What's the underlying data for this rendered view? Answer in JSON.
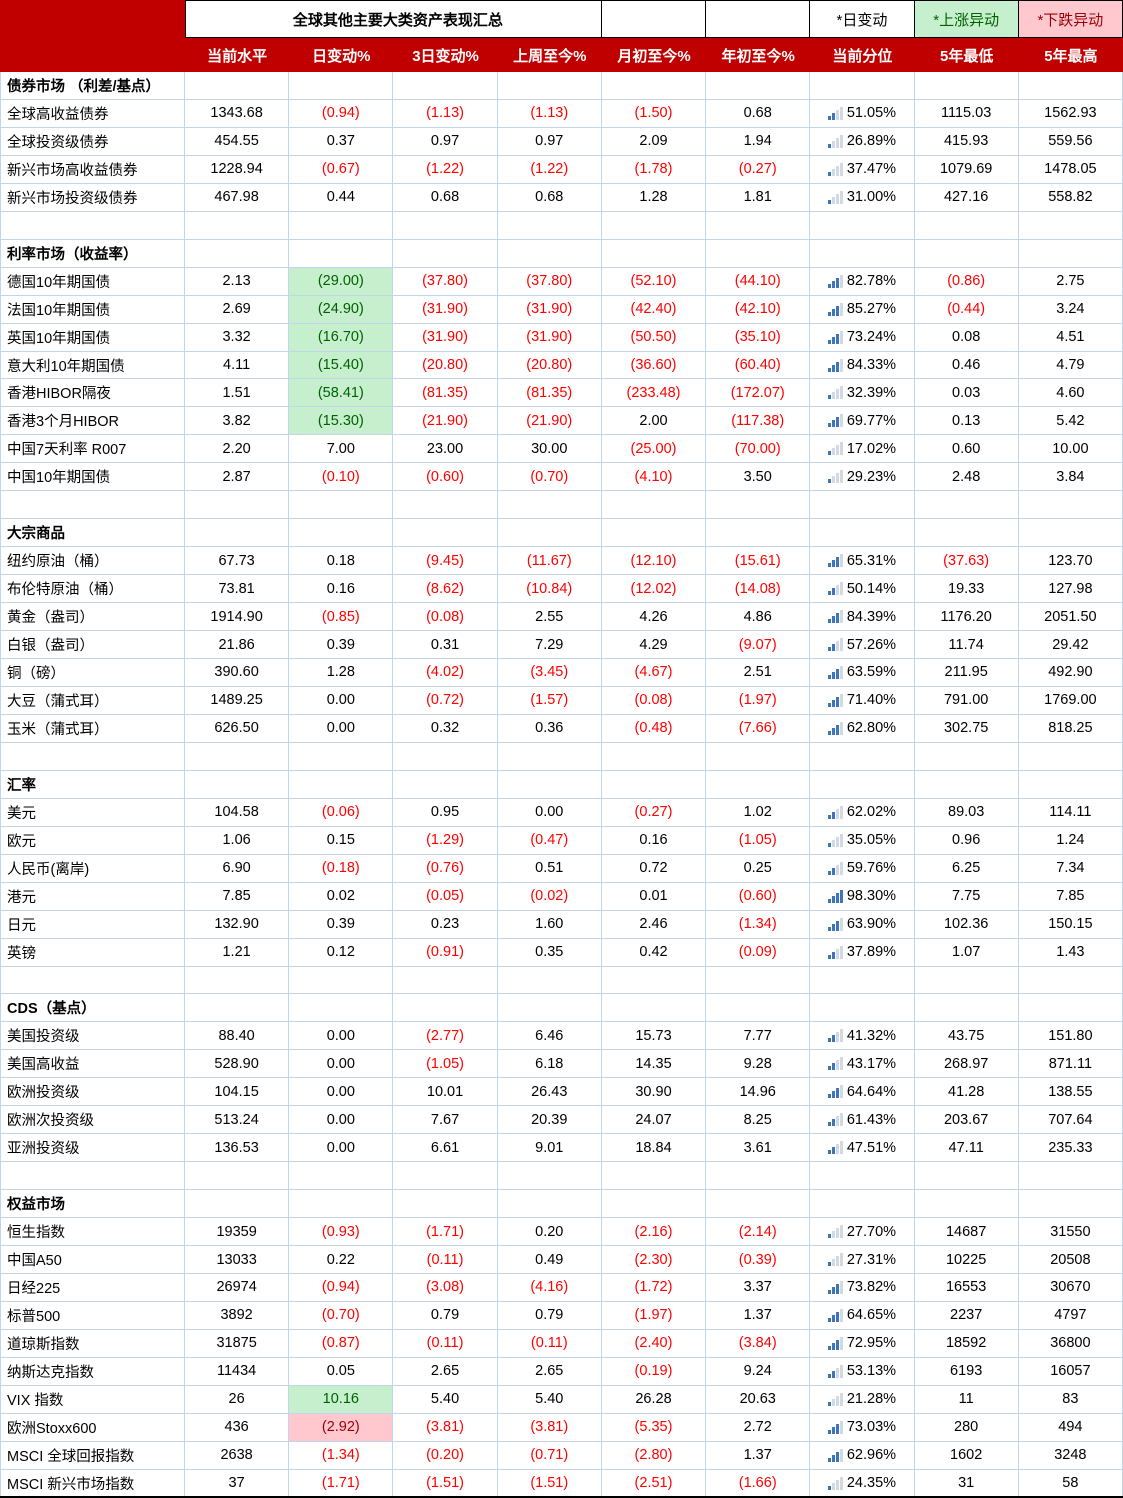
{
  "title": "全球其他主要大类资产表现汇总",
  "legend": {
    "day": "*日变动",
    "up": "*上涨异动",
    "down": "*下跌异动"
  },
  "colors": {
    "header_bg": "#C00000",
    "grid": "#C3D4EB",
    "negative": "#FF0000",
    "up_bg": "#C6EFCE",
    "up_text": "#006100",
    "down_bg": "#FFC7CE",
    "down_text": "#9C0006",
    "icon_filled": "#3E74BA",
    "icon_empty": "#D2D9E2"
  },
  "chart_data": {
    "type": "table",
    "columns": [
      "当前水平",
      "日变动%",
      "3日变动%",
      "上周至今%",
      "月初至今%",
      "年初至今%",
      "当前分位",
      "5年最低",
      "5年最高"
    ],
    "sections": [
      {
        "name": "债券市场 （利差/基点）",
        "rows": [
          {
            "label": "全球高收益债券",
            "cells": [
              "1343.68",
              "(0.94)",
              "(1.13)",
              "(1.13)",
              "(1.50)",
              "0.68",
              "51.05%",
              "1115.03",
              "1562.93"
            ]
          },
          {
            "label": "全球投资级债券",
            "cells": [
              "454.55",
              "0.37",
              "0.97",
              "0.97",
              "2.09",
              "1.94",
              "26.89%",
              "415.93",
              "559.56"
            ]
          },
          {
            "label": "新兴市场高收益债券",
            "cells": [
              "1228.94",
              "(0.67)",
              "(1.22)",
              "(1.22)",
              "(1.78)",
              "(0.27)",
              "37.47%",
              "1079.69",
              "1478.05"
            ]
          },
          {
            "label": "新兴市场投资级债券",
            "cells": [
              "467.98",
              "0.44",
              "0.68",
              "0.68",
              "1.28",
              "1.81",
              "31.00%",
              "427.16",
              "558.82"
            ]
          }
        ]
      },
      {
        "name": "利率市场（收益率）",
        "rows": [
          {
            "label": "德国10年期国债",
            "cells": [
              "2.13",
              "(29.00)",
              "(37.80)",
              "(37.80)",
              "(52.10)",
              "(44.10)",
              "82.78%",
              "(0.86)",
              "2.75"
            ],
            "day_flag": "up"
          },
          {
            "label": "法国10年期国债",
            "cells": [
              "2.69",
              "(24.90)",
              "(31.90)",
              "(31.90)",
              "(42.40)",
              "(42.10)",
              "85.27%",
              "(0.44)",
              "3.24"
            ],
            "day_flag": "up"
          },
          {
            "label": "英国10年期国债",
            "cells": [
              "3.32",
              "(16.70)",
              "(31.90)",
              "(31.90)",
              "(50.50)",
              "(35.10)",
              "73.24%",
              "0.08",
              "4.51"
            ],
            "day_flag": "up"
          },
          {
            "label": "意大利10年期国债",
            "cells": [
              "4.11",
              "(15.40)",
              "(20.80)",
              "(20.80)",
              "(36.60)",
              "(60.40)",
              "84.33%",
              "0.46",
              "4.79"
            ],
            "day_flag": "up"
          },
          {
            "label": "香港HIBOR隔夜",
            "cells": [
              "1.51",
              "(58.41)",
              "(81.35)",
              "(81.35)",
              "(233.48)",
              "(172.07)",
              "32.39%",
              "0.03",
              "4.60"
            ],
            "day_flag": "up"
          },
          {
            "label": "香港3个月HIBOR",
            "cells": [
              "3.82",
              "(15.30)",
              "(21.90)",
              "(21.90)",
              "2.00",
              "(117.38)",
              "69.77%",
              "0.13",
              "5.42"
            ],
            "day_flag": "up"
          },
          {
            "label": "中国7天利率 R007",
            "cells": [
              "2.20",
              "7.00",
              "23.00",
              "30.00",
              "(25.00)",
              "(70.00)",
              "17.02%",
              "0.60",
              "10.00"
            ]
          },
          {
            "label": "中国10年期国债",
            "cells": [
              "2.87",
              "(0.10)",
              "(0.60)",
              "(0.70)",
              "(4.10)",
              "3.50",
              "29.23%",
              "2.48",
              "3.84"
            ]
          }
        ]
      },
      {
        "name": "大宗商品",
        "rows": [
          {
            "label": "纽约原油（桶）",
            "cells": [
              "67.73",
              "0.18",
              "(9.45)",
              "(11.67)",
              "(12.10)",
              "(15.61)",
              "65.31%",
              "(37.63)",
              "123.70"
            ]
          },
          {
            "label": "布伦特原油（桶）",
            "cells": [
              "73.81",
              "0.16",
              "(8.62)",
              "(10.84)",
              "(12.02)",
              "(14.08)",
              "50.14%",
              "19.33",
              "127.98"
            ]
          },
          {
            "label": "黄金（盎司）",
            "cells": [
              "1914.90",
              "(0.85)",
              "(0.08)",
              "2.55",
              "4.26",
              "4.86",
              "84.39%",
              "1176.20",
              "2051.50"
            ]
          },
          {
            "label": "白银（盎司）",
            "cells": [
              "21.86",
              "0.39",
              "0.31",
              "7.29",
              "4.29",
              "(9.07)",
              "57.26%",
              "11.74",
              "29.42"
            ]
          },
          {
            "label": "铜（磅）",
            "cells": [
              "390.60",
              "1.28",
              "(4.02)",
              "(3.45)",
              "(4.67)",
              "2.51",
              "63.59%",
              "211.95",
              "492.90"
            ]
          },
          {
            "label": "大豆（蒲式耳）",
            "cells": [
              "1489.25",
              "0.00",
              "(0.72)",
              "(1.57)",
              "(0.08)",
              "(1.97)",
              "71.40%",
              "791.00",
              "1769.00"
            ]
          },
          {
            "label": "玉米（蒲式耳）",
            "cells": [
              "626.50",
              "0.00",
              "0.32",
              "0.36",
              "(0.48)",
              "(7.66)",
              "62.80%",
              "302.75",
              "818.25"
            ]
          }
        ]
      },
      {
        "name": "汇率",
        "rows": [
          {
            "label": "美元",
            "cells": [
              "104.58",
              "(0.06)",
              "0.95",
              "0.00",
              "(0.27)",
              "1.02",
              "62.02%",
              "89.03",
              "114.11"
            ]
          },
          {
            "label": "欧元",
            "cells": [
              "1.06",
              "0.15",
              "(1.29)",
              "(0.47)",
              "0.16",
              "(1.05)",
              "35.05%",
              "0.96",
              "1.24"
            ]
          },
          {
            "label": "人民币(离岸)",
            "cells": [
              "6.90",
              "(0.18)",
              "(0.76)",
              "0.51",
              "0.72",
              "0.25",
              "59.76%",
              "6.25",
              "7.34"
            ]
          },
          {
            "label": "港元",
            "cells": [
              "7.85",
              "0.02",
              "(0.05)",
              "(0.02)",
              "0.01",
              "(0.60)",
              "98.30%",
              "7.75",
              "7.85"
            ]
          },
          {
            "label": "日元",
            "cells": [
              "132.90",
              "0.39",
              "0.23",
              "1.60",
              "2.46",
              "(1.34)",
              "63.90%",
              "102.36",
              "150.15"
            ]
          },
          {
            "label": "英镑",
            "cells": [
              "1.21",
              "0.12",
              "(0.91)",
              "0.35",
              "0.42",
              "(0.09)",
              "37.89%",
              "1.07",
              "1.43"
            ]
          }
        ]
      },
      {
        "name": "CDS（基点）",
        "rows": [
          {
            "label": "美国投资级",
            "cells": [
              "88.40",
              "0.00",
              "(2.77)",
              "6.46",
              "15.73",
              "7.77",
              "41.32%",
              "43.75",
              "151.80"
            ]
          },
          {
            "label": "美国高收益",
            "cells": [
              "528.90",
              "0.00",
              "(1.05)",
              "6.18",
              "14.35",
              "9.28",
              "43.17%",
              "268.97",
              "871.11"
            ]
          },
          {
            "label": "欧洲投资级",
            "cells": [
              "104.15",
              "0.00",
              "10.01",
              "26.43",
              "30.90",
              "14.96",
              "64.64%",
              "41.28",
              "138.55"
            ]
          },
          {
            "label": "欧洲次投资级",
            "cells": [
              "513.24",
              "0.00",
              "7.67",
              "20.39",
              "24.07",
              "8.25",
              "61.43%",
              "203.67",
              "707.64"
            ]
          },
          {
            "label": "亚洲投资级",
            "cells": [
              "136.53",
              "0.00",
              "6.61",
              "9.01",
              "18.84",
              "3.61",
              "47.51%",
              "47.11",
              "235.33"
            ]
          }
        ]
      },
      {
        "name": "权益市场",
        "rows": [
          {
            "label": "恒生指数",
            "cells": [
              "19359",
              "(0.93)",
              "(1.71)",
              "0.20",
              "(2.16)",
              "(2.14)",
              "27.70%",
              "14687",
              "31550"
            ]
          },
          {
            "label": "中国A50",
            "cells": [
              "13033",
              "0.22",
              "(0.11)",
              "0.49",
              "(2.30)",
              "(0.39)",
              "27.31%",
              "10225",
              "20508"
            ]
          },
          {
            "label": "日经225",
            "cells": [
              "26974",
              "(0.94)",
              "(3.08)",
              "(4.16)",
              "(1.72)",
              "3.37",
              "73.82%",
              "16553",
              "30670"
            ]
          },
          {
            "label": "标普500",
            "cells": [
              "3892",
              "(0.70)",
              "0.79",
              "0.79",
              "(1.97)",
              "1.37",
              "64.65%",
              "2237",
              "4797"
            ]
          },
          {
            "label": "道琼斯指数",
            "cells": [
              "31875",
              "(0.87)",
              "(0.11)",
              "(0.11)",
              "(2.40)",
              "(3.84)",
              "72.95%",
              "18592",
              "36800"
            ]
          },
          {
            "label": "纳斯达克指数",
            "cells": [
              "11434",
              "0.05",
              "2.65",
              "2.65",
              "(0.19)",
              "9.24",
              "53.13%",
              "6193",
              "16057"
            ]
          },
          {
            "label": "VIX 指数",
            "cells": [
              "26",
              "10.16",
              "5.40",
              "5.40",
              "26.28",
              "20.63",
              "21.28%",
              "11",
              "83"
            ],
            "day_flag": "up"
          },
          {
            "label": "欧洲Stoxx600",
            "cells": [
              "436",
              "(2.92)",
              "(3.81)",
              "(3.81)",
              "(5.35)",
              "2.72",
              "73.03%",
              "280",
              "494"
            ],
            "day_flag": "down"
          },
          {
            "label": "MSCI 全球回报指数",
            "cells": [
              "2638",
              "(1.34)",
              "(0.20)",
              "(0.71)",
              "(2.80)",
              "1.37",
              "62.96%",
              "1602",
              "3248"
            ]
          },
          {
            "label": "MSCI 新兴市场指数",
            "cells": [
              "37",
              "(1.71)",
              "(1.51)",
              "(1.51)",
              "(2.51)",
              "(1.66)",
              "24.35%",
              "31",
              "58"
            ]
          }
        ]
      }
    ]
  }
}
